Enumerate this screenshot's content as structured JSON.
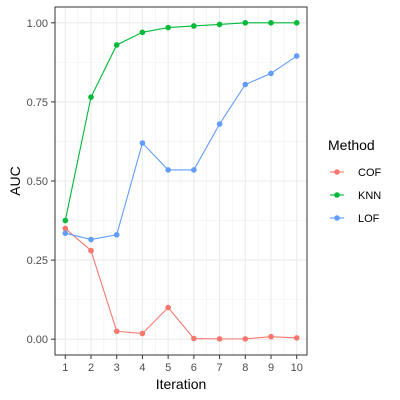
{
  "chart_data": {
    "type": "line",
    "title": "",
    "xlabel": "Iteration",
    "ylabel": "AUC",
    "x": [
      1,
      2,
      3,
      4,
      5,
      6,
      7,
      8,
      9,
      10
    ],
    "xticks": [
      "1",
      "2",
      "3",
      "4",
      "5",
      "6",
      "7",
      "8",
      "9",
      "10"
    ],
    "yticks": [
      "0.00",
      "0.25",
      "0.50",
      "0.75",
      "1.00"
    ],
    "ytick_values": [
      0,
      0.25,
      0.5,
      0.75,
      1.0
    ],
    "xlim": [
      0.6,
      10.4
    ],
    "ylim": [
      -0.05,
      1.05
    ],
    "grid": true,
    "legend": {
      "title": "Method",
      "placement": "right"
    },
    "series": [
      {
        "name": "COF",
        "color": "#F8766D",
        "values": [
          0.35,
          0.28,
          0.025,
          0.018,
          0.1,
          0.002,
          0.001,
          0.001,
          0.008,
          0.004
        ]
      },
      {
        "name": "KNN",
        "color": "#00BA38",
        "values": [
          0.375,
          0.765,
          0.93,
          0.97,
          0.985,
          0.99,
          0.995,
          1.0,
          1.0,
          1.0
        ]
      },
      {
        "name": "LOF",
        "color": "#619CFF",
        "values": [
          0.335,
          0.315,
          0.33,
          0.62,
          0.535,
          0.535,
          0.68,
          0.805,
          0.84,
          0.895
        ]
      }
    ]
  }
}
